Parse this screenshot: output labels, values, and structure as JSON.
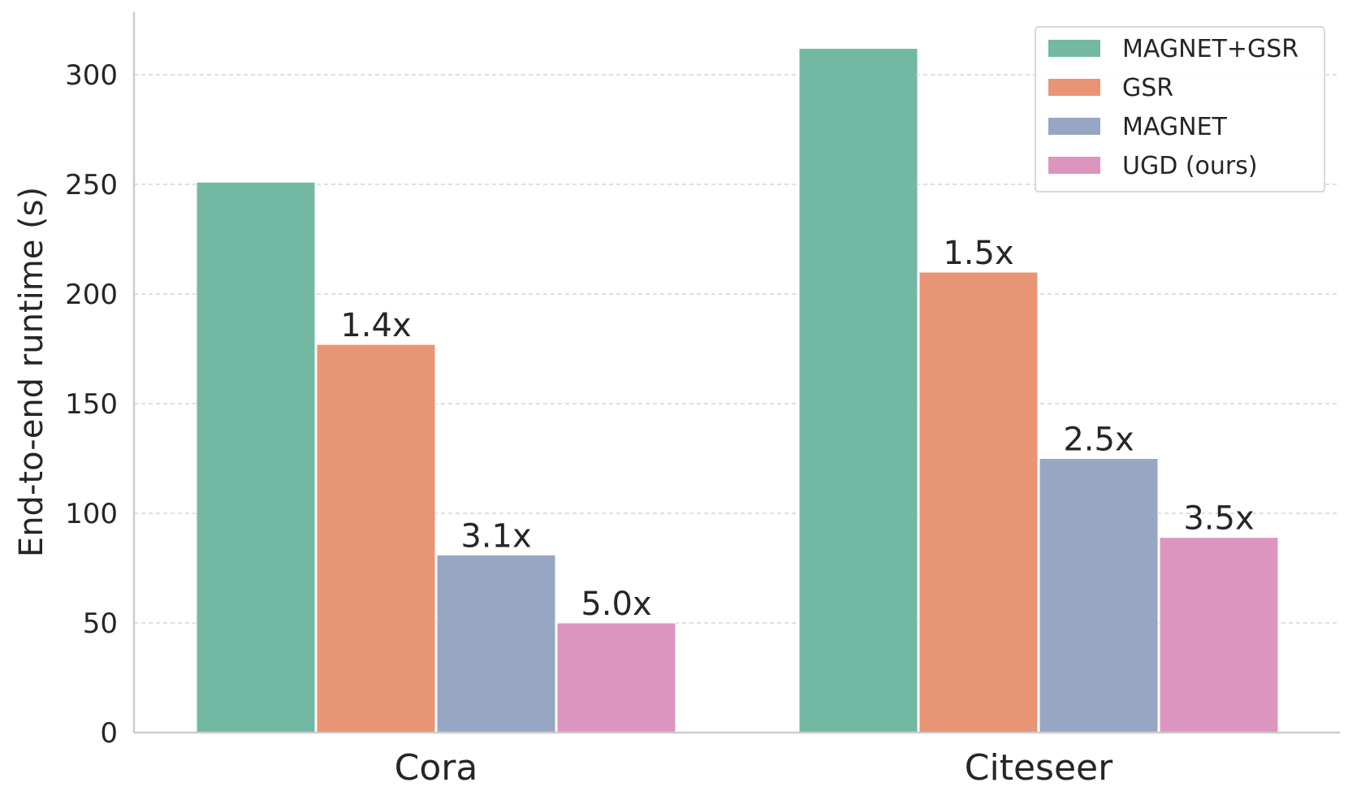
{
  "chart_data": {
    "type": "bar",
    "title": "",
    "xlabel": "",
    "ylabel": "End-to-end runtime (s)",
    "categories": [
      "Cora",
      "Citeseer"
    ],
    "ylim": [
      0,
      330
    ],
    "yticks": [
      0,
      50,
      100,
      150,
      200,
      250,
      300
    ],
    "grid": "horizontal dashed",
    "legend_position": "top-right",
    "series": [
      {
        "name": "MAGNET+GSR",
        "color": "#73b8a2",
        "values": [
          251,
          312
        ],
        "labels": [
          "",
          ""
        ]
      },
      {
        "name": "GSR",
        "color": "#e89575",
        "values": [
          177,
          210
        ],
        "labels": [
          "1.4x",
          "1.5x"
        ]
      },
      {
        "name": "MAGNET",
        "color": "#96a6c3",
        "values": [
          81,
          125
        ],
        "labels": [
          "3.1x",
          "2.5x"
        ]
      },
      {
        "name": "UGD (ours)",
        "color": "#dc95bf",
        "values": [
          50,
          89
        ],
        "labels": [
          "5.0x",
          "3.5x"
        ]
      }
    ]
  }
}
